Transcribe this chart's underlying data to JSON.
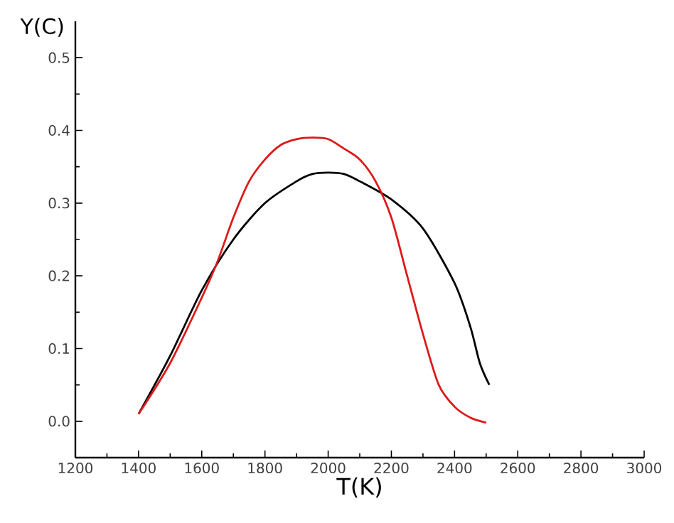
{
  "chart_data": {
    "type": "line",
    "xlabel": "T(K)",
    "ylabel": "Y(C)",
    "xlim": [
      1200,
      3000
    ],
    "ylim": [
      -0.05,
      0.55
    ],
    "xticks": [
      1200,
      1400,
      1600,
      1800,
      2000,
      2200,
      2400,
      2600,
      2800,
      3000
    ],
    "yticks": [
      {
        "value": 0,
        "label": "0.0"
      },
      0.1,
      0.2,
      0.3,
      0.4,
      0.5
    ],
    "grid": false,
    "marker": "none",
    "line_style": "solid",
    "series": [
      {
        "color": "#000000",
        "x": [
          1400,
          1500,
          1600,
          1700,
          1800,
          1900,
          1950,
          2000,
          2050,
          2100,
          2200,
          2300,
          2400,
          2450,
          2480,
          2510
        ],
        "values": [
          0.01,
          0.09,
          0.18,
          0.25,
          0.3,
          0.33,
          0.34,
          0.342,
          0.34,
          0.33,
          0.305,
          0.265,
          0.19,
          0.13,
          0.08,
          0.05
        ]
      },
      {
        "color": "#dd1a1a",
        "x": [
          1400,
          1500,
          1600,
          1650,
          1700,
          1750,
          1800,
          1850,
          1900,
          1950,
          2000,
          2050,
          2100,
          2150,
          2200,
          2250,
          2300,
          2350,
          2400,
          2450,
          2500
        ],
        "values": [
          0.01,
          0.08,
          0.17,
          0.22,
          0.28,
          0.33,
          0.36,
          0.38,
          0.388,
          0.39,
          0.388,
          0.375,
          0.36,
          0.33,
          0.28,
          0.2,
          0.12,
          0.05,
          0.02,
          0.005,
          -0.002
        ]
      }
    ]
  }
}
